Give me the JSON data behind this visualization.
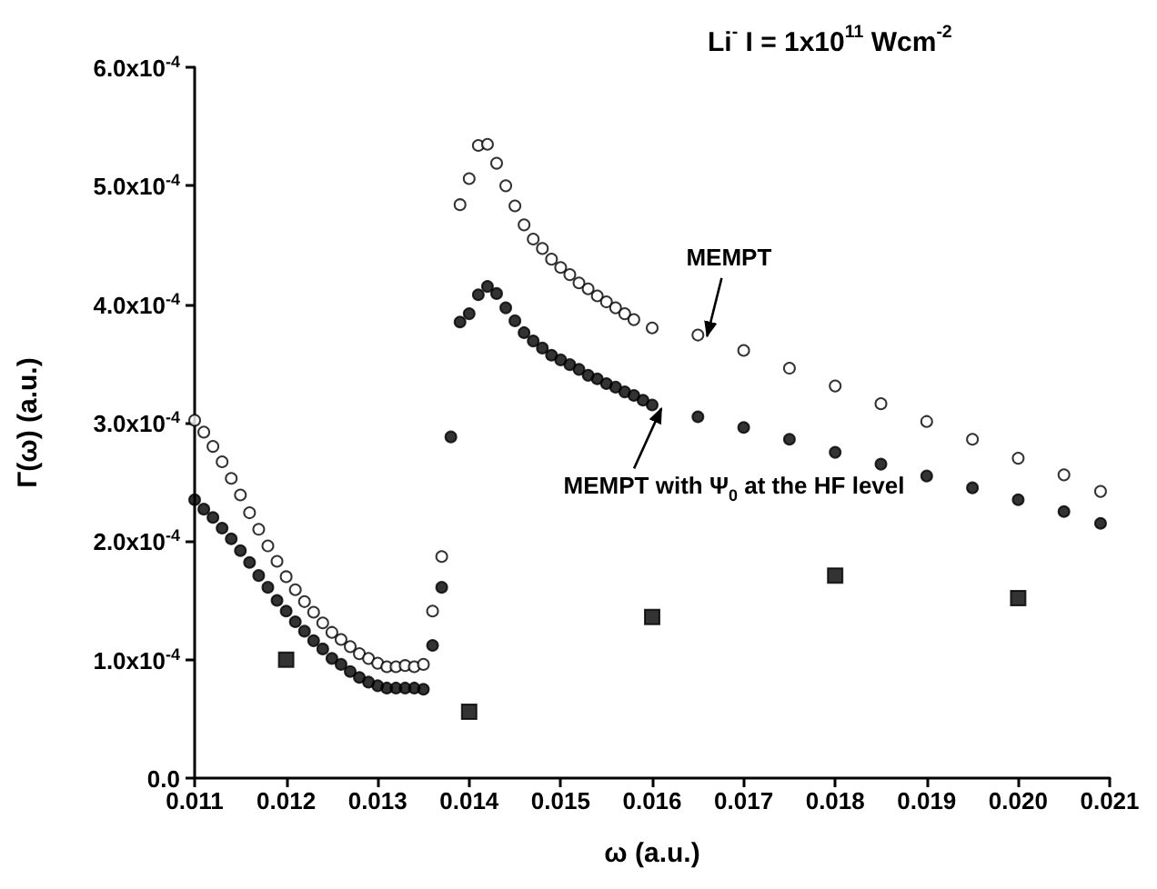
{
  "chart_data": {
    "type": "scatter",
    "title": "Li$^{-}$ I = 1x10$^{11}$ Wcm$^{-2}$",
    "xlabel": "ω (a.u.)",
    "ylabel": "Γ(ω) (a.u.)",
    "xlim": [
      0.011,
      0.021
    ],
    "xticks": [
      {
        "value": 0.011,
        "label": "0.011"
      },
      {
        "value": 0.012,
        "label": "0.012"
      },
      {
        "value": 0.013,
        "label": "0.013"
      },
      {
        "value": 0.014,
        "label": "0.014"
      },
      {
        "value": 0.015,
        "label": "0.015"
      },
      {
        "value": 0.016,
        "label": "0.016"
      },
      {
        "value": 0.017,
        "label": "0.017"
      },
      {
        "value": 0.018,
        "label": "0.018"
      },
      {
        "value": 0.019,
        "label": "0.019"
      },
      {
        "value": 0.02,
        "label": "0.020"
      },
      {
        "value": 0.021,
        "label": "0.021"
      }
    ],
    "ylim": [
      0,
      0.0006
    ],
    "yticks": [
      {
        "value": 0,
        "label": "0.0"
      },
      {
        "value": 0.0001,
        "label": "1.0x10$^{-4}$"
      },
      {
        "value": 0.0002,
        "label": "2.0x10$^{-4}$"
      },
      {
        "value": 0.0003,
        "label": "3.0x10$^{-4}$"
      },
      {
        "value": 0.0004,
        "label": "4.0x10$^{-4}$"
      },
      {
        "value": 0.0005,
        "label": "5.0x10$^{-4}$"
      },
      {
        "value": 0.0006,
        "label": "6.0x10$^{-4}$"
      }
    ],
    "grid": false,
    "series": [
      {
        "color": "#ffffff",
        "marker": "circle",
        "x": [
          0.011,
          0.0111,
          0.0112,
          0.0113,
          0.0114,
          0.0115,
          0.0116,
          0.0117,
          0.0118,
          0.0119,
          0.012,
          0.0121,
          0.0122,
          0.0123,
          0.0124,
          0.0125,
          0.0126,
          0.0127,
          0.0128,
          0.0129,
          0.013,
          0.0131,
          0.0132,
          0.0133,
          0.0134,
          0.0135,
          0.0136,
          0.0137,
          0.0139,
          0.014,
          0.0141,
          0.0142,
          0.0143,
          0.0144,
          0.0145,
          0.0146,
          0.0147,
          0.0148,
          0.0149,
          0.015,
          0.0151,
          0.0152,
          0.0153,
          0.0154,
          0.0155,
          0.0156,
          0.0157,
          0.0158,
          0.016,
          0.0165,
          0.017,
          0.0175,
          0.018,
          0.0185,
          0.019,
          0.0195,
          0.02,
          0.0205,
          0.0209
        ],
        "values": [
          0.000302,
          0.000292,
          0.00028,
          0.000267,
          0.000253,
          0.000239,
          0.000224,
          0.00021,
          0.000196,
          0.000183,
          0.00017,
          0.000159,
          0.000149,
          0.00014,
          0.000131,
          0.000123,
          0.000117,
          0.000111,
          0.000105,
          0.000101,
          9.7e-05,
          9.4e-05,
          9.4e-05,
          9.5e-05,
          9.4e-05,
          9.6e-05,
          0.000141,
          0.000187,
          0.000484,
          0.000506,
          0.000534,
          0.000535,
          0.000519,
          0.0005,
          0.000483,
          0.000467,
          0.000455,
          0.000447,
          0.000438,
          0.000431,
          0.000425,
          0.000418,
          0.000413,
          0.000407,
          0.000402,
          0.000397,
          0.000392,
          0.000387,
          0.00038,
          0.000374,
          0.000361,
          0.000346,
          0.000331,
          0.000316,
          0.000301,
          0.000286,
          0.00027,
          0.000256,
          0.000242
        ]
      },
      {
        "color": "#000000",
        "marker": "circle",
        "x": [
          0.011,
          0.0111,
          0.0112,
          0.0113,
          0.0114,
          0.0115,
          0.0116,
          0.0117,
          0.0118,
          0.0119,
          0.012,
          0.0121,
          0.0122,
          0.0123,
          0.0124,
          0.0125,
          0.0126,
          0.0127,
          0.0128,
          0.0129,
          0.013,
          0.0131,
          0.0132,
          0.0133,
          0.0134,
          0.0135,
          0.0136,
          0.0137,
          0.0138,
          0.0139,
          0.014,
          0.0141,
          0.0142,
          0.0143,
          0.0144,
          0.0145,
          0.0146,
          0.0147,
          0.0148,
          0.0149,
          0.015,
          0.0151,
          0.0152,
          0.0153,
          0.0154,
          0.0155,
          0.0156,
          0.0157,
          0.0158,
          0.0159,
          0.016,
          0.0165,
          0.017,
          0.0175,
          0.018,
          0.0185,
          0.019,
          0.0195,
          0.02,
          0.0205,
          0.0209
        ],
        "values": [
          0.000235,
          0.000227,
          0.00022,
          0.000211,
          0.000202,
          0.000192,
          0.000182,
          0.000171,
          0.000161,
          0.00015,
          0.000141,
          0.000132,
          0.000124,
          0.000116,
          0.000109,
          0.000101,
          9.6e-05,
          9e-05,
          8.5e-05,
          8.1e-05,
          7.8e-05,
          7.6e-05,
          7.6e-05,
          7.6e-05,
          7.6e-05,
          7.5e-05,
          0.000112,
          0.000161,
          0.000288,
          0.000385,
          0.000392,
          0.000408,
          0.000415,
          0.000409,
          0.000397,
          0.000386,
          0.000376,
          0.000369,
          0.000363,
          0.000357,
          0.000353,
          0.000349,
          0.000345,
          0.00034,
          0.000337,
          0.000333,
          0.00033,
          0.000326,
          0.000323,
          0.000319,
          0.000315,
          0.000305,
          0.000296,
          0.000286,
          0.000275,
          0.000265,
          0.000255,
          0.000245,
          0.000235,
          0.000225,
          0.000215
        ]
      },
      {
        "color": "#000000",
        "marker": "square",
        "x": [
          0.012,
          0.014,
          0.016,
          0.018,
          0.02
        ],
        "values": [
          0.0001,
          5.6e-05,
          0.000136,
          0.000171,
          0.000152
        ]
      }
    ],
    "annotations": [
      {
        "text": "MEMPT",
        "x": 0.0166,
        "y": 0.000373
      },
      {
        "text": "MEMPT with Ψ$_{0}$ at the HF level",
        "x": 0.0161,
        "y": 0.000312
      }
    ]
  }
}
